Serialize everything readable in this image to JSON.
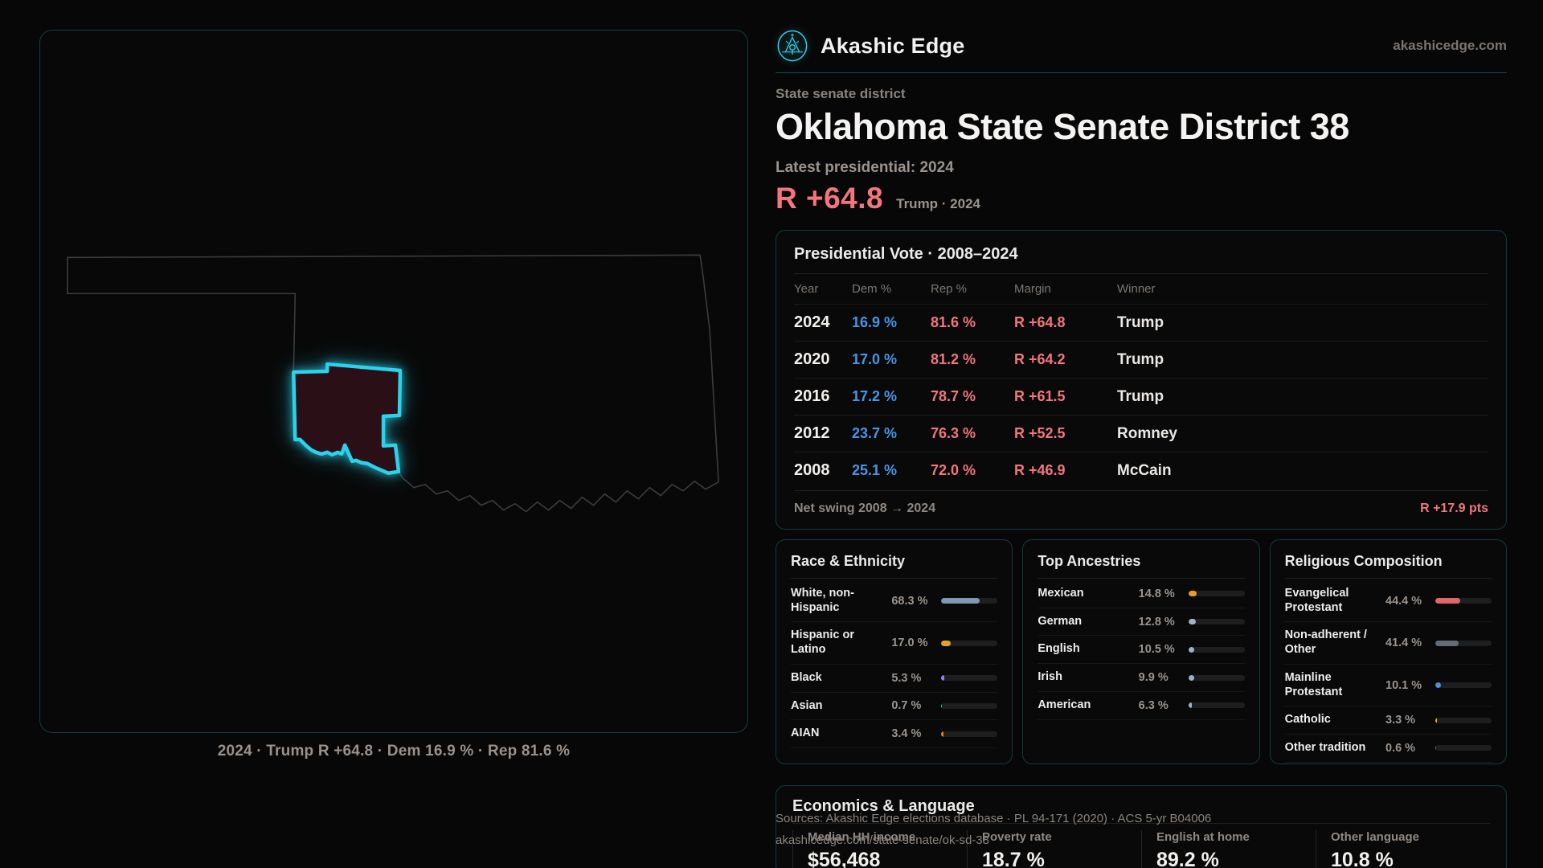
{
  "brand": {
    "name": "Akashic Edge",
    "domain": "akashicedge.com"
  },
  "header": {
    "kicker": "State senate district",
    "title": "Oklahoma State Senate District 38",
    "latest_label": "Latest presidential: 2024",
    "margin_value": "R +64.8",
    "margin_detail": "Trump · 2024"
  },
  "map": {
    "caption": "2024 · Trump R +64.8 · Dem 16.9 % · Rep 81.6 %"
  },
  "colors": {
    "accent_cyan": "#2ad2ec",
    "dem_blue": "#4795e8",
    "rep_red": "#f1767d",
    "district_fill": "#2a1016"
  },
  "presidential": {
    "title": "Presidential Vote · 2008–2024",
    "columns": [
      "Year",
      "Dem %",
      "Rep %",
      "Margin",
      "Winner"
    ],
    "rows": [
      {
        "year": "2024",
        "dem": "16.9 %",
        "rep": "81.6 %",
        "margin": "R +64.8",
        "winner": "Trump"
      },
      {
        "year": "2020",
        "dem": "17.0 %",
        "rep": "81.2 %",
        "margin": "R +64.2",
        "winner": "Trump"
      },
      {
        "year": "2016",
        "dem": "17.2 %",
        "rep": "78.7 %",
        "margin": "R +61.5",
        "winner": "Trump"
      },
      {
        "year": "2012",
        "dem": "23.7 %",
        "rep": "76.3 %",
        "margin": "R +52.5",
        "winner": "Romney"
      },
      {
        "year": "2008",
        "dem": "25.1 %",
        "rep": "72.0 %",
        "margin": "R +46.9",
        "winner": "McCain"
      }
    ],
    "net_swing_label": "Net swing 2008 → 2024",
    "net_swing_value": "R +17.9 pts"
  },
  "race": {
    "title": "Race & Ethnicity",
    "rows": [
      {
        "label": "White, non-Hispanic",
        "value": "68.3 %",
        "pct": 68.3,
        "color": "#8296b4"
      },
      {
        "label": "Hispanic or Latino",
        "value": "17.0 %",
        "pct": 17.0,
        "color": "#e3a12b"
      },
      {
        "label": "Black",
        "value": "5.3 %",
        "pct": 5.3,
        "color": "#9b7cf0"
      },
      {
        "label": "Asian",
        "value": "0.7 %",
        "pct": 0.7,
        "color": "#2fd0a2"
      },
      {
        "label": "AIAN",
        "value": "3.4 %",
        "pct": 3.4,
        "color": "#e0861c"
      }
    ]
  },
  "ancestries": {
    "title": "Top Ancestries",
    "rows": [
      {
        "label": "Mexican",
        "value": "14.8 %",
        "pct": 14.8,
        "color": "#e3a12b"
      },
      {
        "label": "German",
        "value": "12.8 %",
        "pct": 12.8,
        "color": "#9fb3c8"
      },
      {
        "label": "English",
        "value": "10.5 %",
        "pct": 10.5,
        "color": "#9fb3c8"
      },
      {
        "label": "Irish",
        "value": "9.9 %",
        "pct": 9.9,
        "color": "#9fb3c8"
      },
      {
        "label": "American",
        "value": "6.3 %",
        "pct": 6.3,
        "color": "#9fb3c8"
      }
    ]
  },
  "religion": {
    "title": "Religious Composition",
    "rows": [
      {
        "label": "Evangelical Protestant",
        "value": "44.4 %",
        "pct": 44.4,
        "color": "#e0666d"
      },
      {
        "label": "Non-adherent / Other",
        "value": "41.4 %",
        "pct": 41.4,
        "color": "#646b78"
      },
      {
        "label": "Mainline Protestant",
        "value": "10.1 %",
        "pct": 10.1,
        "color": "#4b8fe0"
      },
      {
        "label": "Catholic",
        "value": "3.3 %",
        "pct": 3.3,
        "color": "#e3b01f"
      },
      {
        "label": "Other tradition",
        "value": "0.6 %",
        "pct": 0.6,
        "color": "#6b7280"
      }
    ]
  },
  "economics": {
    "title": "Economics & Language",
    "stats": [
      {
        "label": "Median HH income",
        "value": "$56,468"
      },
      {
        "label": "Poverty rate",
        "value": "18.7 %"
      },
      {
        "label": "English at home",
        "value": "89.2 %"
      },
      {
        "label": "Other language",
        "value": "10.8 %"
      }
    ]
  },
  "footer": {
    "line1": "Sources: Akashic Edge elections database · PL 94-171 (2020) · ACS 5-yr B04006",
    "line2": "akashicedge.com/state-senate/ok-sd-38"
  }
}
